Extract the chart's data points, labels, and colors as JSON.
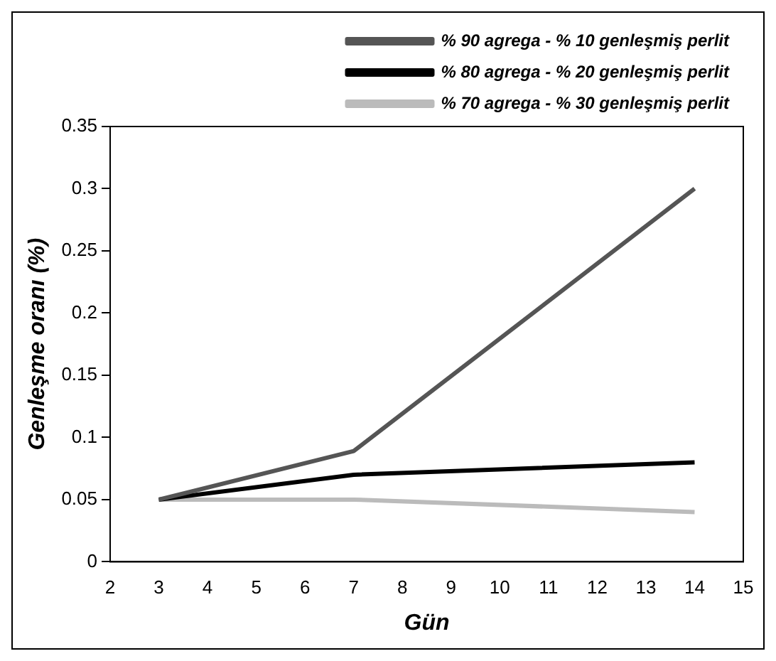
{
  "chart_data": {
    "type": "line",
    "xlabel": "Gün",
    "ylabel": "Genleşme oranı (%)",
    "x": [
      3,
      7,
      14
    ],
    "series": [
      {
        "name": "% 90 agrega - % 10 genleşmiş perlit",
        "color": "#555555",
        "values": [
          0.05,
          0.089,
          0.3
        ]
      },
      {
        "name": "% 80 agrega - % 20 genleşmiş perlit",
        "color": "#000000",
        "values": [
          0.05,
          0.07,
          0.08
        ]
      },
      {
        "name": "% 70 agrega - % 30 genleşmiş perlit",
        "color": "#bbbbbb",
        "values": [
          0.05,
          0.05,
          0.04
        ]
      }
    ],
    "xlim": [
      2,
      15
    ],
    "xticks": [
      2,
      3,
      4,
      5,
      6,
      7,
      8,
      9,
      10,
      11,
      12,
      13,
      14,
      15
    ],
    "ylim": [
      0,
      0.35
    ],
    "yticks": [
      0,
      0.05,
      0.1,
      0.15,
      0.2,
      0.25,
      0.3,
      0.35
    ],
    "grid": false,
    "legend": "top",
    "marker": "none",
    "line_style": "solid"
  }
}
